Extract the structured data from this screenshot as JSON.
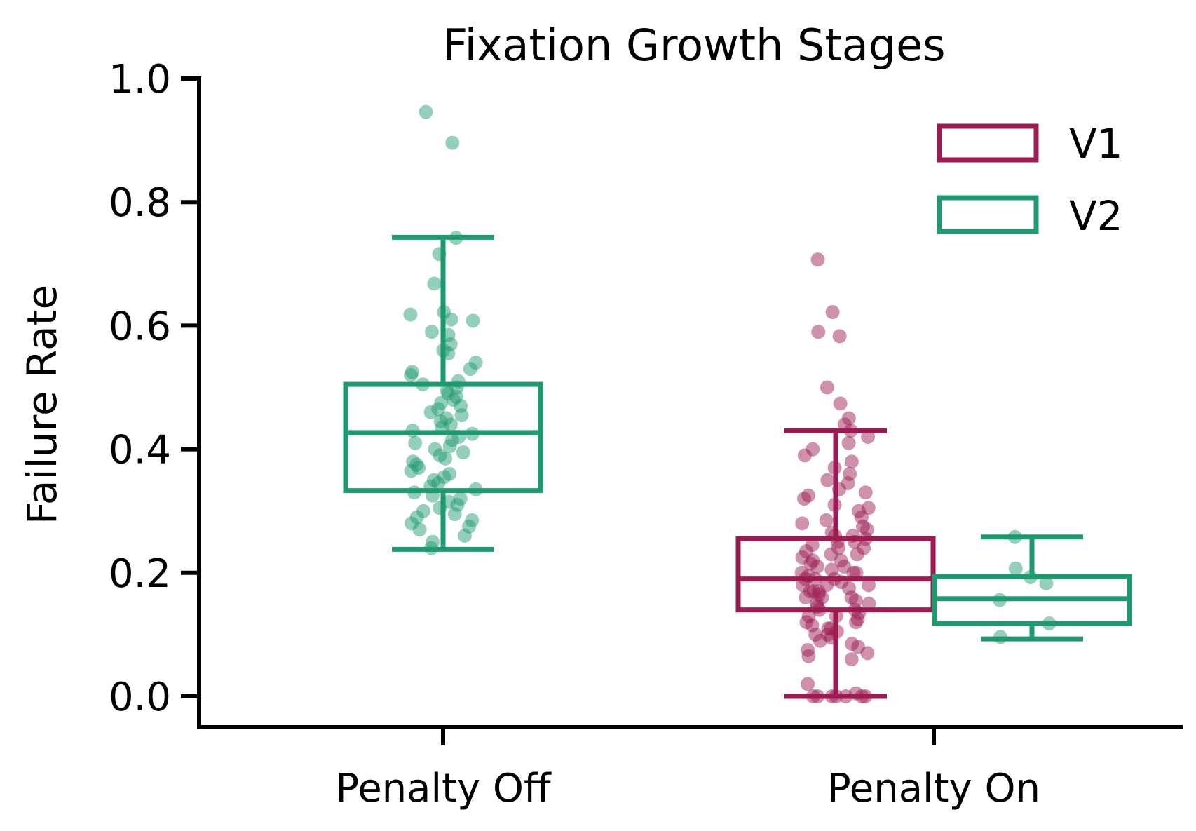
{
  "chart_data": {
    "type": "box",
    "title": "Fixation Growth Stages",
    "xlabel": "",
    "ylabel": "Failure Rate",
    "categories": [
      "Penalty Off",
      "Penalty On"
    ],
    "yticks": [
      "0.0",
      "0.2",
      "0.4",
      "0.6",
      "0.8",
      "1.0"
    ],
    "ylim": [
      -0.05,
      1.0
    ],
    "legend": {
      "placement": "top-right",
      "entries": [
        "V1",
        "V2"
      ]
    },
    "colors": {
      "V1": "#9b1b52",
      "V2": "#1f9a6e"
    },
    "series": [
      {
        "name": "V1",
        "boxes": [
          null,
          {
            "whisker_low": 0.0,
            "q1": 0.14,
            "median": 0.19,
            "q3": 0.255,
            "whisker_high": 0.43,
            "outliers": [
              0.707,
              0.622,
              0.59,
              0.583,
              0.5,
              0.474
            ],
            "points": [
              0.707,
              0.622,
              0.59,
              0.583,
              0.5,
              0.474,
              0.45,
              0.44,
              0.43,
              0.42,
              0.41,
              0.4,
              0.39,
              0.38,
              0.37,
              0.36,
              0.35,
              0.345,
              0.335,
              0.33,
              0.325,
              0.32,
              0.31,
              0.305,
              0.3,
              0.29,
              0.285,
              0.28,
              0.275,
              0.27,
              0.265,
              0.26,
              0.26,
              0.255,
              0.25,
              0.25,
              0.245,
              0.24,
              0.24,
              0.235,
              0.23,
              0.23,
              0.225,
              0.22,
              0.22,
              0.215,
              0.21,
              0.21,
              0.205,
              0.2,
              0.2,
              0.2,
              0.195,
              0.19,
              0.19,
              0.19,
              0.185,
              0.18,
              0.18,
              0.18,
              0.175,
              0.17,
              0.17,
              0.17,
              0.165,
              0.16,
              0.16,
              0.16,
              0.155,
              0.15,
              0.15,
              0.145,
              0.14,
              0.14,
              0.135,
              0.13,
              0.13,
              0.125,
              0.12,
              0.12,
              0.115,
              0.11,
              0.11,
              0.105,
              0.1,
              0.1,
              0.095,
              0.09,
              0.085,
              0.08,
              0.075,
              0.07,
              0.065,
              0.06,
              0.02,
              0.005,
              0.0,
              0.0,
              0.0,
              0.0,
              0.0,
              0.0,
              0.0
            ]
          }
        ]
      },
      {
        "name": "V2",
        "boxes": [
          {
            "whisker_low": 0.238,
            "q1": 0.333,
            "median": 0.427,
            "q3": 0.505,
            "whisker_high": 0.743,
            "outliers": [
              0.946,
              0.896
            ],
            "points": [
              0.946,
              0.896,
              0.742,
              0.716,
              0.668,
              0.622,
              0.618,
              0.61,
              0.608,
              0.59,
              0.585,
              0.57,
              0.56,
              0.555,
              0.54,
              0.53,
              0.525,
              0.52,
              0.51,
              0.505,
              0.5,
              0.495,
              0.49,
              0.485,
              0.48,
              0.475,
              0.47,
              0.465,
              0.46,
              0.455,
              0.45,
              0.445,
              0.44,
              0.435,
              0.43,
              0.425,
              0.42,
              0.415,
              0.41,
              0.405,
              0.4,
              0.395,
              0.39,
              0.385,
              0.38,
              0.375,
              0.37,
              0.365,
              0.36,
              0.355,
              0.35,
              0.345,
              0.34,
              0.335,
              0.33,
              0.325,
              0.32,
              0.315,
              0.31,
              0.305,
              0.3,
              0.295,
              0.29,
              0.285,
              0.28,
              0.275,
              0.27,
              0.26,
              0.25,
              0.24
            ]
          },
          {
            "whisker_low": 0.093,
            "q1": 0.118,
            "median": 0.158,
            "q3": 0.194,
            "whisker_high": 0.258,
            "outliers": [],
            "points": [
              0.258,
              0.207,
              0.193,
              0.183,
              0.156,
              0.118,
              0.096
            ]
          }
        ]
      }
    ]
  }
}
